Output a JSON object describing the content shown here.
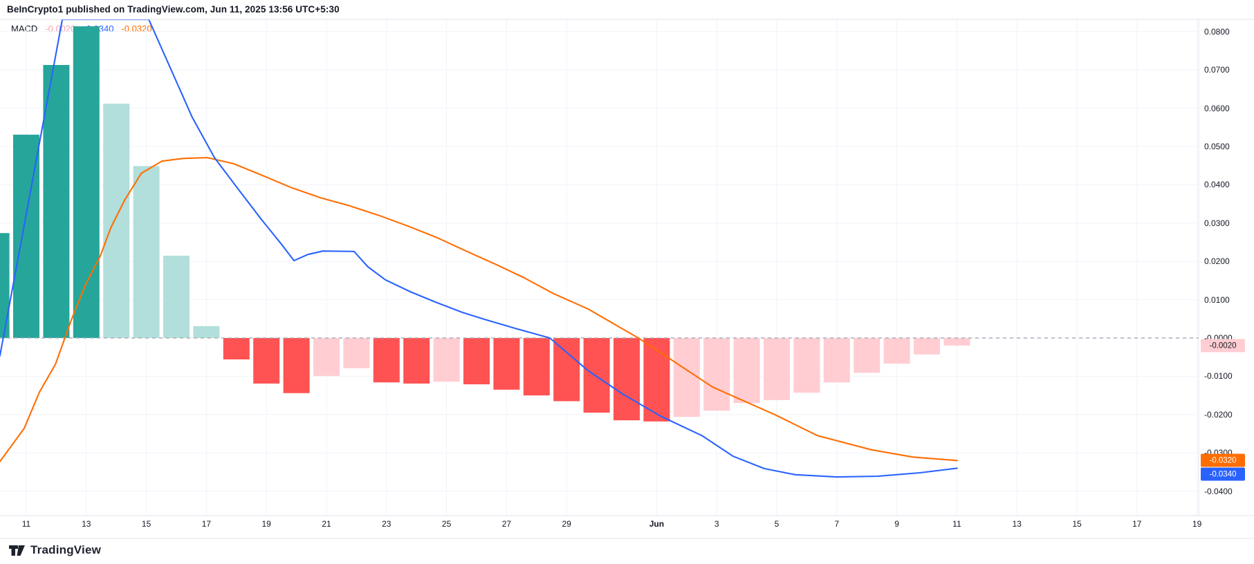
{
  "header": {
    "title": "BeInCrypto1 published on TradingView.com, Jun 11, 2025 13:56 UTC+5:30"
  },
  "legend": {
    "indicator": "MACD",
    "histogram_value": "-0.0020",
    "macd_value": "-0.0340",
    "signal_value": "-0.0320"
  },
  "colors": {
    "macd_line": "#2962FF",
    "signal_line": "#FF6D00",
    "hist_strong_pos": "#26A69A",
    "hist_weak_pos": "#B2DFDB",
    "hist_strong_neg": "#FF5252",
    "hist_weak_neg": "#FFCDD2",
    "legend_hist_value": "#F5A3B1",
    "grid": "#F0F3FA",
    "zero_dash": "#A9AEB8",
    "border": "#E0E3EB",
    "axis_text": "#131722"
  },
  "badges": [
    {
      "name": "histogram-badge",
      "text": "-0.0020",
      "value": -0.002,
      "bg": "#FFCDD2",
      "fg": "#131722"
    },
    {
      "name": "signal-badge",
      "text": "-0.0320",
      "value": -0.032,
      "bg": "#FF6D00",
      "fg": "#FFFFFF"
    },
    {
      "name": "macd-badge",
      "text": "-0.0340",
      "value": -0.034,
      "bg": "#2962FF",
      "fg": "#FFFFFF"
    }
  ],
  "y_axis": {
    "labels": [
      {
        "text": "0.0800",
        "v": 0.08
      },
      {
        "text": "0.0700",
        "v": 0.07
      },
      {
        "text": "0.0600",
        "v": 0.06
      },
      {
        "text": "0.0500",
        "v": 0.05
      },
      {
        "text": "0.0400",
        "v": 0.04
      },
      {
        "text": "0.0300",
        "v": 0.03
      },
      {
        "text": "0.0200",
        "v": 0.02
      },
      {
        "text": "0.0100",
        "v": 0.01
      },
      {
        "text": "-0.0000",
        "v": 0.0
      },
      {
        "text": "-0.0100",
        "v": -0.01
      },
      {
        "text": "-0.0200",
        "v": -0.02
      },
      {
        "text": "-0.0300",
        "v": -0.03
      },
      {
        "text": "-0.0400",
        "v": -0.04
      }
    ]
  },
  "x_axis": {
    "labels": [
      {
        "text": "11",
        "day": 1,
        "bold": false
      },
      {
        "text": "13",
        "day": 3,
        "bold": false
      },
      {
        "text": "15",
        "day": 5,
        "bold": false
      },
      {
        "text": "17",
        "day": 7,
        "bold": false
      },
      {
        "text": "19",
        "day": 9,
        "bold": false
      },
      {
        "text": "21",
        "day": 11,
        "bold": false
      },
      {
        "text": "23",
        "day": 13,
        "bold": false
      },
      {
        "text": "25",
        "day": 15,
        "bold": false
      },
      {
        "text": "27",
        "day": 17,
        "bold": false
      },
      {
        "text": "29",
        "day": 19,
        "bold": false
      },
      {
        "text": "Jun",
        "day": 22,
        "bold": true
      },
      {
        "text": "3",
        "day": 24,
        "bold": false
      },
      {
        "text": "5",
        "day": 26,
        "bold": false
      },
      {
        "text": "7",
        "day": 28,
        "bold": false
      },
      {
        "text": "9",
        "day": 30,
        "bold": false
      },
      {
        "text": "11",
        "day": 32,
        "bold": false
      },
      {
        "text": "13",
        "day": 34,
        "bold": false
      },
      {
        "text": "15",
        "day": 36,
        "bold": false
      },
      {
        "text": "17",
        "day": 38,
        "bold": false
      },
      {
        "text": "19",
        "day": 40,
        "bold": false
      }
    ]
  },
  "logo": {
    "text": "TradingView"
  },
  "chart_data": {
    "type": "macd-indicator",
    "title": "MACD",
    "y_range": [
      -0.0464,
      0.0832
    ],
    "grid": true,
    "histogram": [
      {
        "date": "May 10",
        "day": 0,
        "value": 0.0274,
        "color": "strong_pos"
      },
      {
        "date": "May 11",
        "day": 1,
        "value": 0.0531,
        "color": "strong_pos"
      },
      {
        "date": "May 12",
        "day": 2,
        "value": 0.0713,
        "color": "strong_pos"
      },
      {
        "date": "May 13",
        "day": 3,
        "value": 0.0814,
        "color": "strong_pos"
      },
      {
        "date": "May 14",
        "day": 4,
        "value": 0.0612,
        "color": "weak_pos"
      },
      {
        "date": "May 15",
        "day": 5,
        "value": 0.0449,
        "color": "weak_pos"
      },
      {
        "date": "May 16",
        "day": 6,
        "value": 0.0215,
        "color": "weak_pos"
      },
      {
        "date": "May 17",
        "day": 7,
        "value": 0.0031,
        "color": "weak_pos"
      },
      {
        "date": "May 18",
        "day": 8,
        "value": -0.0056,
        "color": "strong_neg"
      },
      {
        "date": "May 19",
        "day": 9,
        "value": -0.0119,
        "color": "strong_neg"
      },
      {
        "date": "May 20",
        "day": 10,
        "value": -0.0144,
        "color": "strong_neg"
      },
      {
        "date": "May 21",
        "day": 11,
        "value": -0.0099,
        "color": "weak_neg"
      },
      {
        "date": "May 22",
        "day": 12,
        "value": -0.0079,
        "color": "weak_neg"
      },
      {
        "date": "May 23",
        "day": 13,
        "value": -0.0116,
        "color": "strong_neg"
      },
      {
        "date": "May 24",
        "day": 14,
        "value": -0.0119,
        "color": "strong_neg"
      },
      {
        "date": "May 25",
        "day": 15,
        "value": -0.0114,
        "color": "weak_neg"
      },
      {
        "date": "May 26",
        "day": 16,
        "value": -0.0121,
        "color": "strong_neg"
      },
      {
        "date": "May 27",
        "day": 17,
        "value": -0.0135,
        "color": "strong_neg"
      },
      {
        "date": "May 28",
        "day": 18,
        "value": -0.015,
        "color": "strong_neg"
      },
      {
        "date": "May 29",
        "day": 19,
        "value": -0.0165,
        "color": "strong_neg"
      },
      {
        "date": "May 30",
        "day": 20,
        "value": -0.0195,
        "color": "strong_neg"
      },
      {
        "date": "May 31",
        "day": 21,
        "value": -0.0215,
        "color": "strong_neg"
      },
      {
        "date": "Jun 1",
        "day": 22,
        "value": -0.0218,
        "color": "strong_neg"
      },
      {
        "date": "Jun 2",
        "day": 23,
        "value": -0.0206,
        "color": "weak_neg"
      },
      {
        "date": "Jun 3",
        "day": 24,
        "value": -0.019,
        "color": "weak_neg"
      },
      {
        "date": "Jun 4",
        "day": 25,
        "value": -0.017,
        "color": "weak_neg"
      },
      {
        "date": "Jun 5",
        "day": 26,
        "value": -0.0162,
        "color": "weak_neg"
      },
      {
        "date": "Jun 6",
        "day": 27,
        "value": -0.0143,
        "color": "weak_neg"
      },
      {
        "date": "Jun 7",
        "day": 28,
        "value": -0.0116,
        "color": "weak_neg"
      },
      {
        "date": "Jun 8",
        "day": 29,
        "value": -0.0091,
        "color": "weak_neg"
      },
      {
        "date": "Jun 9",
        "day": 30,
        "value": -0.0067,
        "color": "weak_neg"
      },
      {
        "date": "Jun 10",
        "day": 31,
        "value": -0.0043,
        "color": "weak_neg"
      },
      {
        "date": "Jun 11",
        "day": 32,
        "value": -0.002,
        "color": "weak_neg"
      }
    ],
    "macd_line": {
      "name": "MACD line",
      "last_value": -0.034,
      "points": [
        [
          0.12,
          -0.0047
        ],
        [
          0.7,
          0.0197
        ],
        [
          2.2,
          0.0832
        ],
        [
          5.08,
          0.0832
        ],
        [
          6.53,
          0.0576
        ],
        [
          7.27,
          0.0471
        ],
        [
          7.96,
          0.0399
        ],
        [
          8.83,
          0.031
        ],
        [
          9.48,
          0.0247
        ],
        [
          9.92,
          0.0202
        ],
        [
          10.38,
          0.0218
        ],
        [
          10.88,
          0.0227
        ],
        [
          11.92,
          0.0226
        ],
        [
          12.38,
          0.0186
        ],
        [
          12.96,
          0.0152
        ],
        [
          13.79,
          0.0121
        ],
        [
          14.62,
          0.0094
        ],
        [
          15.52,
          0.0067
        ],
        [
          16.25,
          0.0049
        ],
        [
          17.29,
          0.0025
        ],
        [
          18.44,
          0.0
        ],
        [
          19.71,
          -0.0085
        ],
        [
          20.86,
          -0.0146
        ],
        [
          22.13,
          -0.0204
        ],
        [
          23.51,
          -0.0255
        ],
        [
          24.55,
          -0.0309
        ],
        [
          25.58,
          -0.0341
        ],
        [
          26.62,
          -0.0357
        ],
        [
          28.0,
          -0.0363
        ],
        [
          29.38,
          -0.0361
        ],
        [
          30.77,
          -0.0352
        ],
        [
          32.01,
          -0.034
        ]
      ]
    },
    "signal_line": {
      "name": "Signal line",
      "last_value": -0.032,
      "points": [
        [
          0.12,
          -0.0323
        ],
        [
          0.93,
          -0.0236
        ],
        [
          1.44,
          -0.0141
        ],
        [
          1.97,
          -0.0069
        ],
        [
          2.5,
          0.0047
        ],
        [
          2.96,
          0.0137
        ],
        [
          3.47,
          0.0215
        ],
        [
          3.81,
          0.0287
        ],
        [
          4.27,
          0.0359
        ],
        [
          4.83,
          0.043
        ],
        [
          5.52,
          0.0462
        ],
        [
          6.23,
          0.0469
        ],
        [
          7.04,
          0.0471
        ],
        [
          7.91,
          0.0455
        ],
        [
          8.88,
          0.0424
        ],
        [
          9.85,
          0.0392
        ],
        [
          10.81,
          0.0366
        ],
        [
          11.78,
          0.0345
        ],
        [
          12.75,
          0.032
        ],
        [
          13.72,
          0.0292
        ],
        [
          14.69,
          0.0262
        ],
        [
          15.65,
          0.0227
        ],
        [
          16.62,
          0.0193
        ],
        [
          17.59,
          0.0157
        ],
        [
          18.56,
          0.0116
        ],
        [
          19.71,
          0.0076
        ],
        [
          21.39,
          0.0
        ],
        [
          23.86,
          -0.0128
        ],
        [
          25.93,
          -0.02
        ],
        [
          27.36,
          -0.0255
        ],
        [
          29.16,
          -0.0292
        ],
        [
          30.54,
          -0.0311
        ],
        [
          32.01,
          -0.032
        ]
      ]
    }
  }
}
